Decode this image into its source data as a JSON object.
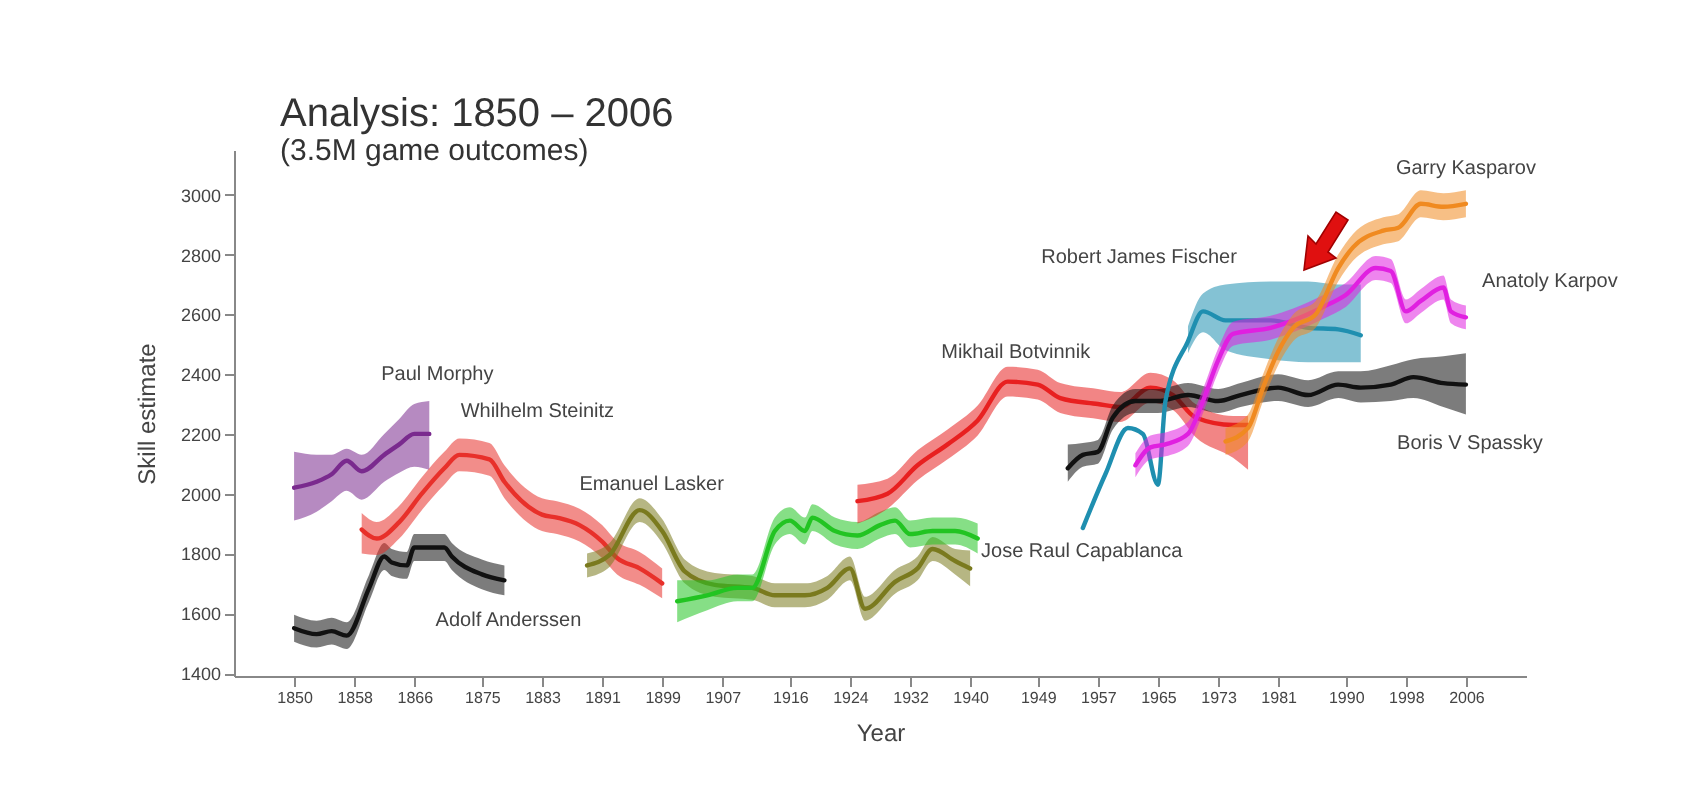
{
  "chart_data": {
    "type": "line",
    "title": "Analysis: 1850 – 2006",
    "subtitle": "(3.5M game outcomes)",
    "xlabel": "Year",
    "ylabel": "Skill estimate",
    "xlim": [
      1842,
      2014
    ],
    "xticks": [
      1850,
      1858,
      1866,
      1875,
      1883,
      1891,
      1899,
      1907,
      1916,
      1924,
      1932,
      1940,
      1949,
      1957,
      1965,
      1973,
      1981,
      1990,
      1998,
      2006
    ],
    "ylim": [
      1390,
      3150
    ],
    "yticks": [
      1400,
      1600,
      1800,
      2000,
      2200,
      2400,
      2600,
      2800,
      3000
    ],
    "grid": false,
    "marker": "none",
    "line_style": "solid",
    "series": [
      {
        "name": "Paul Morphy",
        "color": "#7a2a8e",
        "x": [
          1850,
          1853,
          1855,
          1857,
          1859,
          1862,
          1864,
          1866,
          1868
        ],
        "values": [
          2020,
          2040,
          2065,
          2110,
          2075,
          2130,
          2165,
          2200,
          2200
        ],
        "lower": [
          1910,
          1940,
          1975,
          2010,
          1980,
          2040,
          2070,
          2090,
          2080
        ],
        "upper": [
          2140,
          2130,
          2130,
          2150,
          2130,
          2200,
          2250,
          2300,
          2310
        ]
      },
      {
        "name": "Adolf Anderssen",
        "color": "#111111",
        "x": [
          1850,
          1853,
          1855,
          1857,
          1860,
          1862,
          1863,
          1865,
          1866,
          1870,
          1871,
          1875,
          1878
        ],
        "values": [
          1550,
          1530,
          1540,
          1525,
          1685,
          1790,
          1770,
          1760,
          1820,
          1820,
          1790,
          1730,
          1710
        ],
        "lower": [
          1505,
          1485,
          1495,
          1480,
          1640,
          1745,
          1725,
          1715,
          1775,
          1775,
          1745,
          1680,
          1660
        ],
        "upper": [
          1595,
          1575,
          1585,
          1570,
          1730,
          1835,
          1815,
          1805,
          1865,
          1865,
          1835,
          1780,
          1760
        ]
      },
      {
        "name": "Whilhelm Steinitz",
        "color": "#e8302a",
        "x": [
          1859,
          1861,
          1864,
          1867,
          1870,
          1872,
          1876,
          1878,
          1883,
          1885,
          1888,
          1891,
          1893,
          1896,
          1899
        ],
        "values": [
          1880,
          1850,
          1905,
          2000,
          2085,
          2130,
          2115,
          2040,
          1930,
          1920,
          1895,
          1840,
          1785,
          1750,
          1700
        ],
        "lower": [
          1800,
          1795,
          1850,
          1945,
          2030,
          2075,
          2060,
          1985,
          1875,
          1865,
          1840,
          1785,
          1730,
          1695,
          1650
        ],
        "upper": [
          1935,
          1905,
          1960,
          2055,
          2140,
          2185,
          2170,
          2095,
          1985,
          1975,
          1950,
          1895,
          1840,
          1805,
          1750
        ]
      },
      {
        "name": "Emanuel Lasker",
        "color": "#7a7a1e",
        "x": [
          1889,
          1892,
          1896,
          1899,
          1902,
          1906,
          1911,
          1914,
          1918,
          1921,
          1924,
          1926,
          1930,
          1933,
          1935,
          1938,
          1940
        ],
        "values": [
          1760,
          1795,
          1945,
          1875,
          1740,
          1695,
          1685,
          1660,
          1660,
          1685,
          1750,
          1615,
          1705,
          1750,
          1815,
          1775,
          1750
        ],
        "lower": [
          1720,
          1755,
          1905,
          1835,
          1700,
          1655,
          1645,
          1620,
          1620,
          1645,
          1710,
          1575,
          1665,
          1710,
          1775,
          1730,
          1690
        ],
        "upper": [
          1800,
          1835,
          1985,
          1915,
          1780,
          1735,
          1725,
          1700,
          1700,
          1725,
          1790,
          1655,
          1745,
          1790,
          1855,
          1815,
          1810
        ]
      },
      {
        "name": "Jose Raul Capablanca",
        "color": "#22c422",
        "x": [
          1901,
          1905,
          1909,
          1911,
          1914,
          1916,
          1918,
          1919,
          1922,
          1925,
          1928,
          1930,
          1932,
          1935,
          1938,
          1941
        ],
        "values": [
          1640,
          1660,
          1685,
          1685,
          1875,
          1910,
          1875,
          1920,
          1875,
          1860,
          1895,
          1910,
          1865,
          1875,
          1875,
          1850
        ],
        "lower": [
          1570,
          1610,
          1640,
          1640,
          1830,
          1865,
          1830,
          1875,
          1830,
          1815,
          1850,
          1865,
          1820,
          1830,
          1830,
          1800
        ],
        "upper": [
          1710,
          1710,
          1730,
          1730,
          1920,
          1955,
          1920,
          1965,
          1920,
          1905,
          1940,
          1955,
          1910,
          1920,
          1920,
          1900
        ]
      },
      {
        "name": "Mikhail Botvinnik",
        "color": "#e82020",
        "x": [
          1925,
          1929,
          1933,
          1937,
          1941,
          1945,
          1949,
          1952,
          1957,
          1960,
          1964,
          1967,
          1970,
          1975,
          1977
        ],
        "values": [
          1975,
          2000,
          2095,
          2165,
          2245,
          2375,
          2365,
          2320,
          2300,
          2290,
          2355,
          2330,
          2255,
          2230,
          2230
        ],
        "lower": [
          1900,
          1950,
          2045,
          2115,
          2195,
          2325,
          2315,
          2270,
          2250,
          2240,
          2305,
          2280,
          2190,
          2120,
          2080
        ],
        "upper": [
          2030,
          2050,
          2145,
          2215,
          2295,
          2425,
          2415,
          2370,
          2350,
          2340,
          2405,
          2380,
          2300,
          2260,
          2260
        ]
      },
      {
        "name": "Boris V Spassky",
        "color": "#111111",
        "x": [
          1953,
          1955,
          1957,
          1959,
          1962,
          1965,
          1969,
          1973,
          1976,
          1981,
          1985,
          1989,
          1992,
          1996,
          1999,
          2003,
          2006
        ],
        "values": [
          2085,
          2130,
          2140,
          2255,
          2310,
          2310,
          2330,
          2310,
          2330,
          2355,
          2330,
          2365,
          2355,
          2365,
          2390,
          2370,
          2365
        ],
        "lower": [
          2040,
          2090,
          2100,
          2215,
          2270,
          2270,
          2290,
          2270,
          2290,
          2310,
          2290,
          2320,
          2305,
          2310,
          2320,
          2290,
          2265
        ],
        "upper": [
          2165,
          2170,
          2180,
          2295,
          2350,
          2350,
          2370,
          2350,
          2370,
          2400,
          2380,
          2410,
          2410,
          2430,
          2450,
          2460,
          2470
        ]
      },
      {
        "name": "Robert James Fischer",
        "color": "#1f8fb0",
        "x": [
          1955,
          1958,
          1961,
          1963,
          1965,
          1966,
          1969,
          1971,
          1974,
          1980,
          1985,
          1989,
          1992
        ],
        "values": [
          1885,
          2065,
          2220,
          2200,
          2030,
          2310,
          2510,
          2610,
          2580,
          2580,
          2555,
          2550,
          2530
        ],
        "lower": [
          null,
          null,
          null,
          null,
          null,
          null,
          2470,
          2540,
          2480,
          2450,
          2440,
          2440,
          2440
        ],
        "upper": [
          null,
          null,
          null,
          null,
          null,
          null,
          2560,
          2670,
          2700,
          2710,
          2710,
          2700,
          2700
        ]
      },
      {
        "name": "Anatoly Karpov",
        "color": "#e020e0",
        "x": [
          1962,
          1964,
          1966,
          1969,
          1971,
          1973,
          1975,
          1980,
          1983,
          1987,
          1990,
          1994,
          1996,
          1998,
          2000,
          2003,
          2004,
          2006
        ],
        "values": [
          2095,
          2155,
          2165,
          2200,
          2310,
          2445,
          2535,
          2555,
          2580,
          2625,
          2665,
          2755,
          2745,
          2610,
          2645,
          2690,
          2610,
          2590
        ],
        "lower": [
          2055,
          2115,
          2125,
          2160,
          2270,
          2405,
          2495,
          2515,
          2540,
          2585,
          2625,
          2715,
          2705,
          2570,
          2605,
          2650,
          2570,
          2550
        ],
        "upper": [
          2135,
          2195,
          2205,
          2240,
          2350,
          2485,
          2575,
          2595,
          2620,
          2665,
          2705,
          2795,
          2785,
          2650,
          2685,
          2730,
          2650,
          2630
        ]
      },
      {
        "name": "Garry Kasparov",
        "color": "#f08a20",
        "x": [
          1974,
          1977,
          1979,
          1981,
          1983,
          1986,
          1989,
          1991,
          1995,
          1997,
          2000,
          2003,
          2006
        ],
        "values": [
          2175,
          2220,
          2355,
          2475,
          2555,
          2600,
          2755,
          2825,
          2880,
          2890,
          2970,
          2960,
          2970
        ],
        "lower": [
          2130,
          2175,
          2310,
          2430,
          2510,
          2555,
          2710,
          2780,
          2835,
          2845,
          2925,
          2915,
          2925
        ],
        "upper": [
          2220,
          2265,
          2400,
          2520,
          2600,
          2645,
          2800,
          2870,
          2925,
          2935,
          3015,
          3005,
          3015
        ]
      }
    ]
  }
}
